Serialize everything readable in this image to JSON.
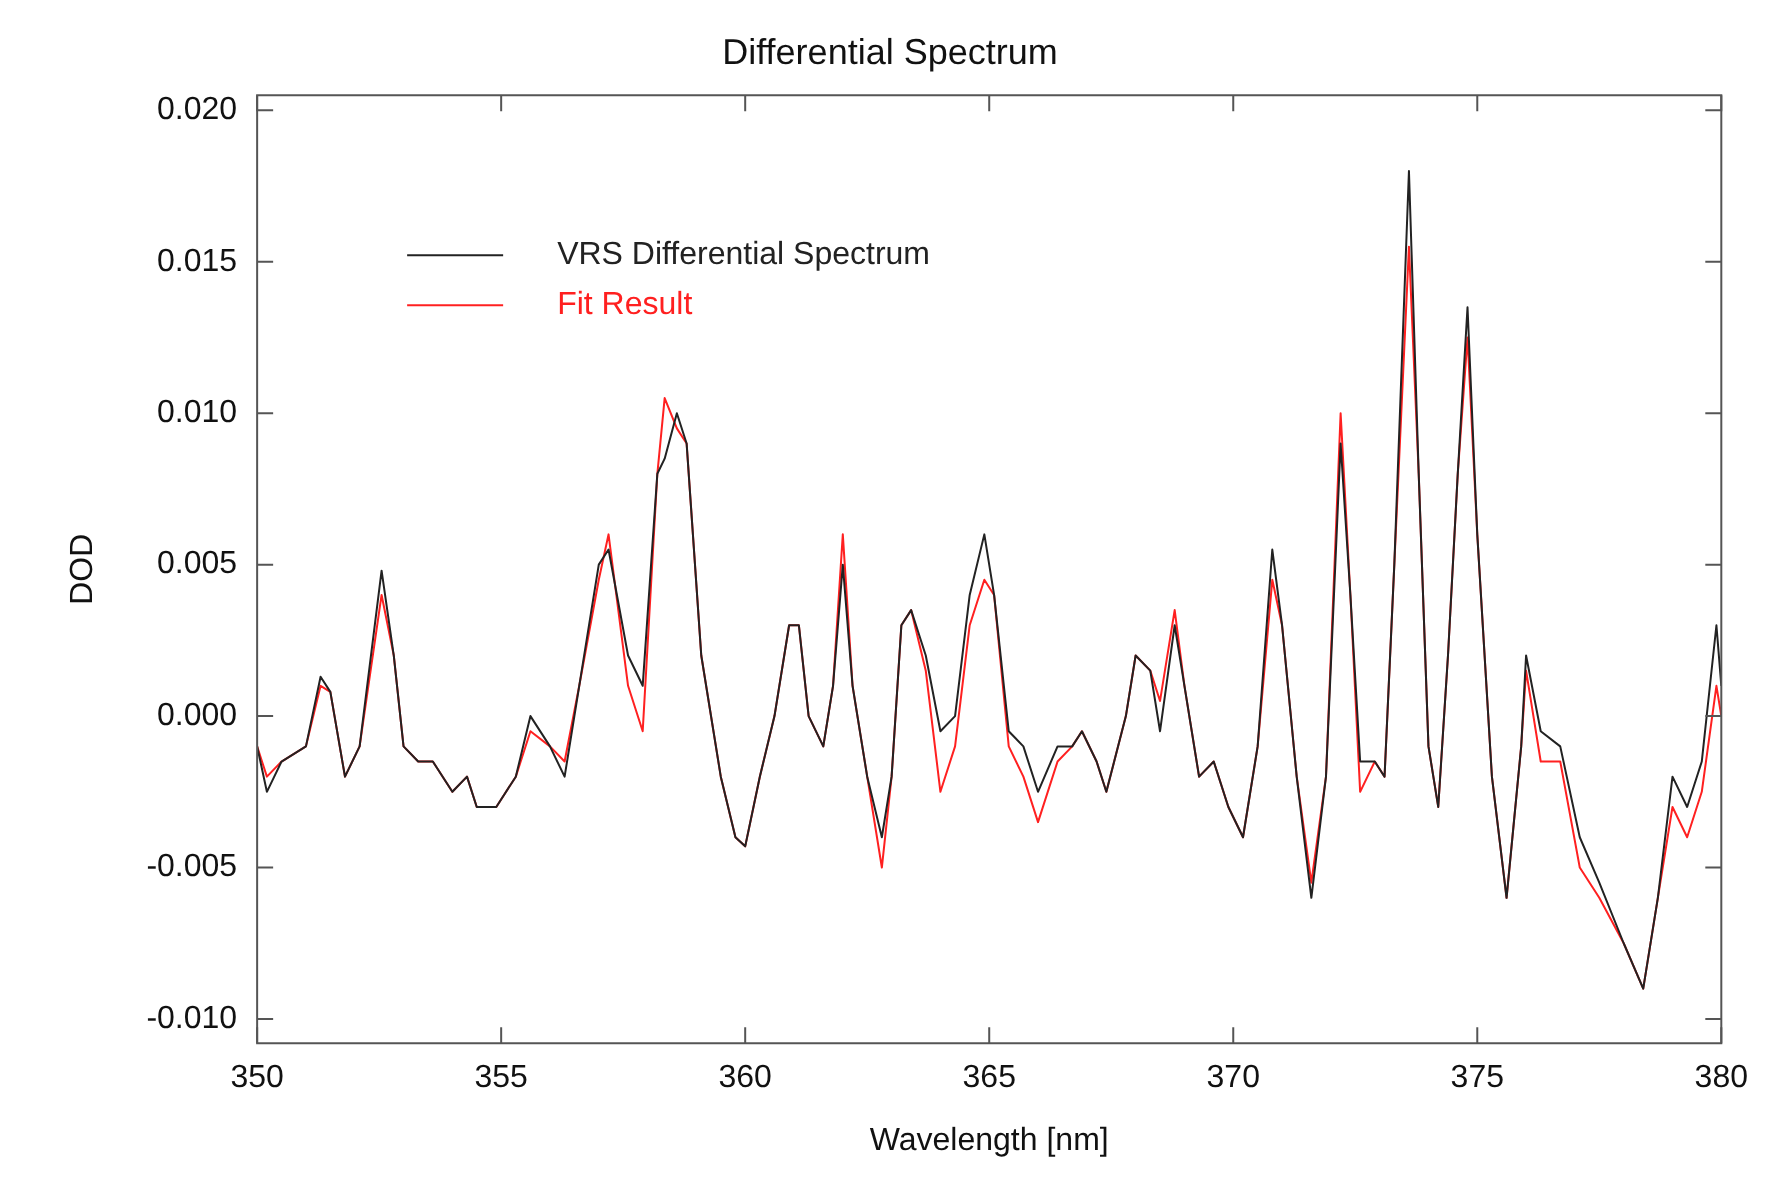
{
  "chart_data": {
    "type": "line",
    "title": "Differential Spectrum",
    "xlabel": "Wavelength [nm]",
    "ylabel": "DOD",
    "x": [
      350.0,
      350.2,
      350.5,
      351.0,
      351.3,
      351.5,
      351.8,
      352.1,
      352.55,
      352.8,
      353.0,
      353.3,
      353.6,
      354.0,
      354.3,
      354.5,
      354.9,
      355.3,
      355.6,
      356.0,
      356.3,
      356.6,
      357.0,
      357.2,
      357.6,
      357.9,
      358.2,
      358.35,
      358.6,
      358.8,
      359.1,
      359.5,
      359.8,
      360.0,
      360.3,
      360.6,
      360.9,
      361.1,
      361.3,
      361.6,
      361.8,
      362.0,
      362.2,
      362.5,
      362.8,
      363.0,
      363.2,
      363.4,
      363.7,
      364.0,
      364.3,
      364.6,
      364.9,
      365.1,
      365.4,
      365.7,
      366.0,
      366.4,
      366.7,
      366.9,
      367.2,
      367.4,
      367.8,
      368.0,
      368.3,
      368.5,
      368.8,
      369.0,
      369.3,
      369.6,
      369.9,
      370.2,
      370.5,
      370.8,
      371.0,
      371.3,
      371.6,
      371.9,
      372.2,
      372.4,
      372.6,
      372.9,
      373.1,
      373.3,
      373.6,
      373.8,
      374.0,
      374.2,
      374.4,
      374.6,
      374.8,
      375.0,
      375.3,
      375.6,
      375.9,
      376.0,
      376.3,
      376.7,
      377.1,
      377.5,
      378.0,
      378.4,
      378.7,
      379.0,
      379.3,
      379.6,
      379.9,
      380.0
    ],
    "series": [
      {
        "name": "VRS Differential Spectrum",
        "color": "#222222",
        "values": [
          -0.001,
          -0.0025,
          -0.0015,
          -0.001,
          0.0013,
          0.0008,
          -0.002,
          -0.001,
          0.0048,
          0.002,
          -0.001,
          -0.0015,
          -0.0015,
          -0.0025,
          -0.002,
          -0.003,
          -0.003,
          -0.002,
          0.0,
          -0.001,
          -0.002,
          0.001,
          0.005,
          0.0055,
          0.002,
          0.001,
          0.008,
          0.0085,
          0.01,
          0.009,
          0.002,
          -0.002,
          -0.004,
          -0.0043,
          -0.002,
          0.0,
          0.003,
          0.003,
          0.0,
          -0.001,
          0.001,
          0.005,
          0.001,
          -0.002,
          -0.004,
          -0.002,
          0.003,
          0.0035,
          0.002,
          -0.0005,
          0.0,
          0.004,
          0.006,
          0.004,
          -0.0005,
          -0.001,
          -0.0025,
          -0.001,
          -0.001,
          -0.0005,
          -0.0015,
          -0.0025,
          0.0,
          0.002,
          0.0015,
          -0.0005,
          0.003,
          0.001,
          -0.002,
          -0.0015,
          -0.003,
          -0.004,
          -0.001,
          0.0055,
          0.003,
          -0.002,
          -0.006,
          -0.002,
          0.009,
          0.004,
          -0.0015,
          -0.0015,
          -0.002,
          0.005,
          0.018,
          0.008,
          -0.001,
          -0.003,
          0.002,
          0.008,
          0.0135,
          0.006,
          -0.002,
          -0.006,
          -0.001,
          0.002,
          -0.0005,
          -0.001,
          -0.004,
          -0.0055,
          -0.0075,
          -0.009,
          -0.006,
          -0.002,
          -0.003,
          -0.0015,
          0.003,
          0.001
        ]
      },
      {
        "name": "Fit Result",
        "color": "#ff2020",
        "values": [
          -0.001,
          -0.002,
          -0.0015,
          -0.001,
          0.001,
          0.0008,
          -0.002,
          -0.001,
          0.004,
          0.002,
          -0.001,
          -0.0015,
          -0.0015,
          -0.0025,
          -0.002,
          -0.003,
          -0.003,
          -0.002,
          -0.0005,
          -0.001,
          -0.0015,
          0.001,
          0.0045,
          0.006,
          0.001,
          -0.0005,
          0.008,
          0.0105,
          0.0095,
          0.009,
          0.002,
          -0.002,
          -0.004,
          -0.0043,
          -0.002,
          0.0,
          0.003,
          0.003,
          0.0,
          -0.001,
          0.001,
          0.006,
          0.001,
          -0.002,
          -0.005,
          -0.002,
          0.003,
          0.0035,
          0.0015,
          -0.0025,
          -0.001,
          0.003,
          0.0045,
          0.004,
          -0.001,
          -0.002,
          -0.0035,
          -0.0015,
          -0.001,
          -0.0005,
          -0.0015,
          -0.0025,
          0.0,
          0.002,
          0.0015,
          0.0005,
          0.0035,
          0.001,
          -0.002,
          -0.0015,
          -0.003,
          -0.004,
          -0.001,
          0.0045,
          0.003,
          -0.002,
          -0.0055,
          -0.002,
          0.01,
          0.004,
          -0.0025,
          -0.0015,
          -0.002,
          0.005,
          0.0155,
          0.008,
          -0.001,
          -0.003,
          0.002,
          0.008,
          0.0125,
          0.006,
          -0.002,
          -0.006,
          -0.001,
          0.0015,
          -0.0015,
          -0.0015,
          -0.005,
          -0.006,
          -0.0075,
          -0.009,
          -0.006,
          -0.003,
          -0.004,
          -0.0025,
          0.001,
          0.0
        ]
      }
    ],
    "xlim": [
      350,
      380
    ],
    "xticks": [
      350,
      355,
      360,
      365,
      370,
      375,
      380
    ],
    "ylim": [
      -0.0108,
      0.0205
    ],
    "yticks": [
      {
        "value": -0.01,
        "label": "-0.010"
      },
      {
        "value": -0.005,
        "label": "-0.005"
      },
      {
        "value": 0,
        "label": "0.000"
      },
      {
        "value": 0.005,
        "label": "0.005"
      },
      {
        "value": 0.01,
        "label": "0.010"
      },
      {
        "value": 0.015,
        "label": "0.015"
      },
      {
        "value": 0.02,
        "label": "0.020"
      }
    ],
    "grid": false,
    "legend": "top left",
    "marker": "none",
    "line_style": "solid"
  }
}
